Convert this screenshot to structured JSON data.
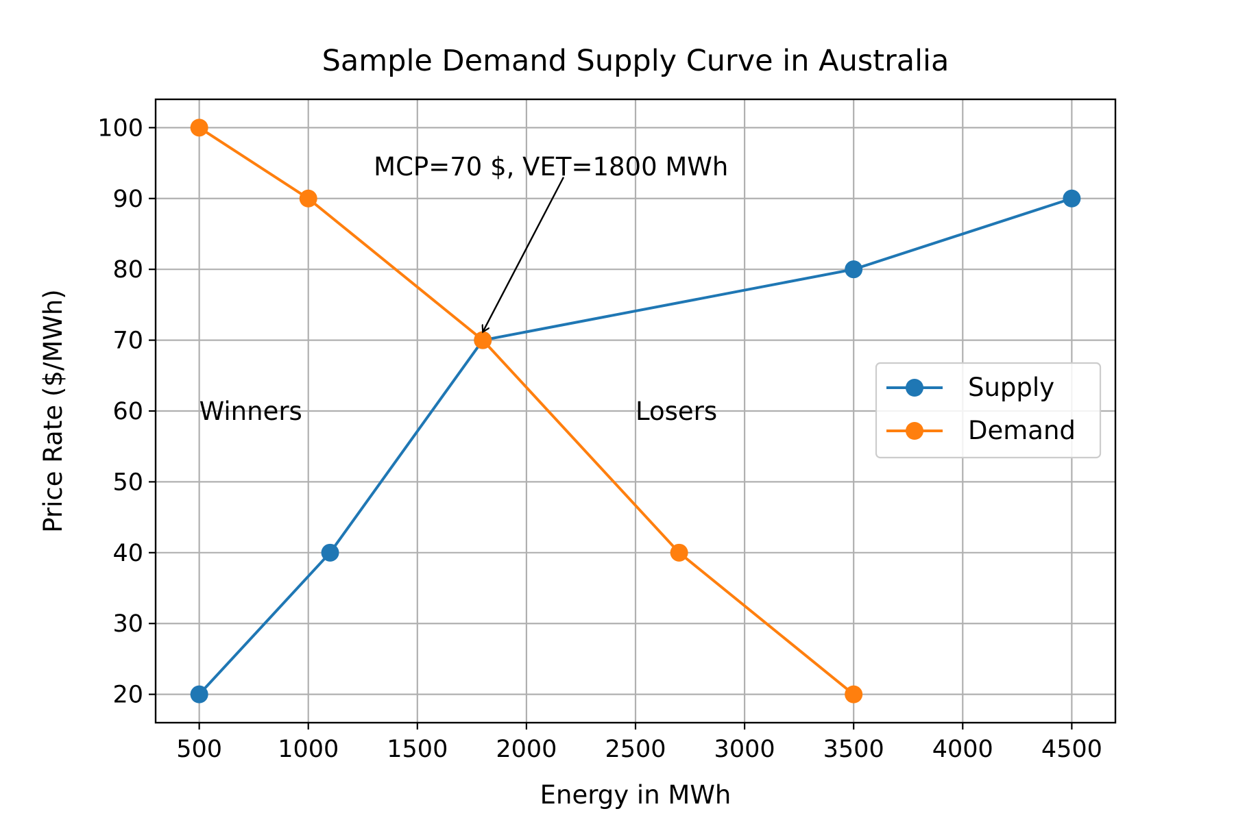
{
  "chart_data": {
    "type": "line",
    "title": "Sample Demand Supply Curve in Australia",
    "xlabel": "Energy in MWh",
    "ylabel": "Price Rate ($/MWh)",
    "xlim": [
      300,
      4700
    ],
    "ylim": [
      16,
      104
    ],
    "xticks": [
      500,
      1000,
      1500,
      2000,
      2500,
      3000,
      3500,
      4000,
      4500
    ],
    "yticks": [
      20,
      30,
      40,
      50,
      60,
      70,
      80,
      90,
      100
    ],
    "grid": true,
    "legend_position": "center-right",
    "series": [
      {
        "name": "Supply",
        "color": "#1f77b4",
        "marker": "circle",
        "x": [
          500,
          1100,
          1800,
          3500,
          4500
        ],
        "y": [
          20,
          40,
          70,
          80,
          90
        ]
      },
      {
        "name": "Demand",
        "color": "#ff7f0e",
        "marker": "circle",
        "x": [
          500,
          1000,
          1800,
          2700,
          3500
        ],
        "y": [
          100,
          90,
          70,
          40,
          20
        ]
      }
    ],
    "annotations": [
      {
        "text": "MCP=70 $, VET=1800 MWh",
        "x": 1300,
        "y": 94.5,
        "arrow_from": [
          2170,
          93
        ],
        "arrow_to": [
          1800,
          70
        ]
      },
      {
        "text": "Winners",
        "x": 500,
        "y": 60
      },
      {
        "text": "Losers",
        "x": 2500,
        "y": 60
      }
    ]
  }
}
